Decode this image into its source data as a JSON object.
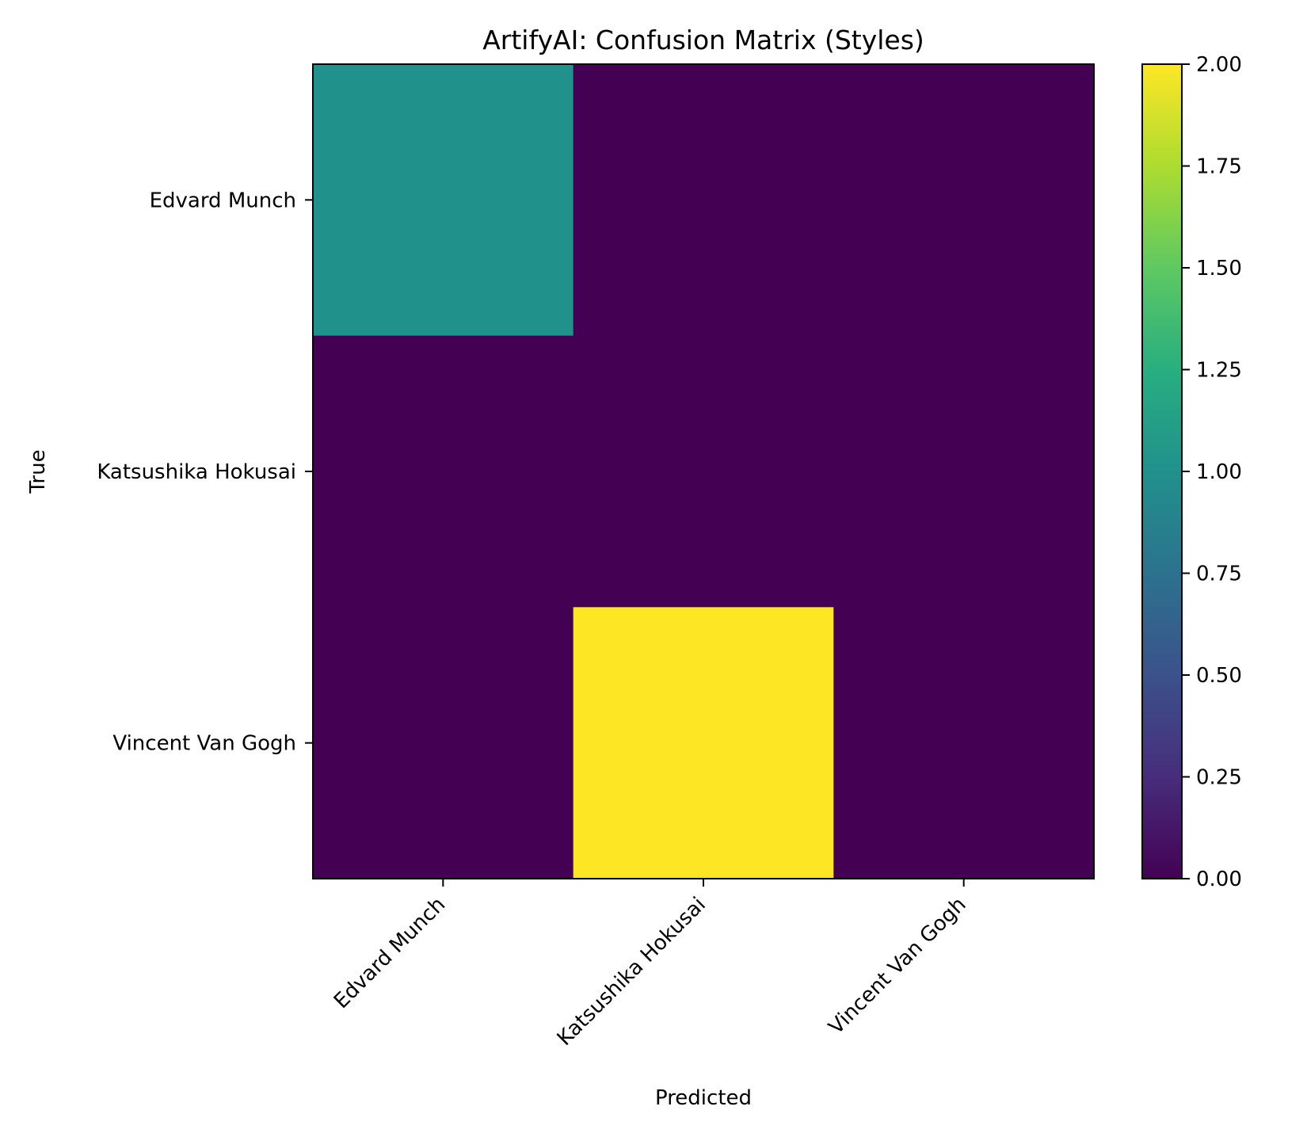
{
  "chart_data": {
    "type": "heatmap",
    "title": "ArtifyAI: Confusion Matrix (Styles)",
    "xlabel": "Predicted",
    "ylabel": "True",
    "row_labels": [
      "Edvard Munch",
      "Katsushika Hokusai",
      "Vincent Van Gogh"
    ],
    "col_labels": [
      "Edvard Munch",
      "Katsushika Hokusai",
      "Vincent Van Gogh"
    ],
    "values": [
      [
        1,
        0,
        0
      ],
      [
        0,
        0,
        0
      ],
      [
        0,
        2,
        0
      ]
    ],
    "colormap": "viridis",
    "colorbar": {
      "range": [
        0,
        2
      ],
      "ticks": [
        "0.00",
        "0.25",
        "0.50",
        "0.75",
        "1.00",
        "1.25",
        "1.50",
        "1.75",
        "2.00"
      ]
    }
  }
}
